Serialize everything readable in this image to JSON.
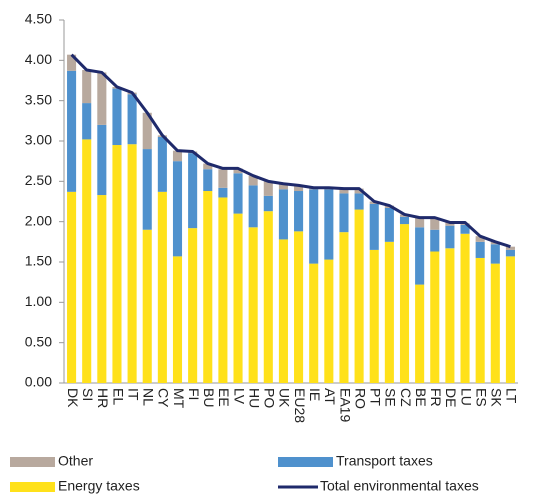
{
  "chart_data": {
    "type": "bar",
    "stacked": true,
    "categories": [
      "DK",
      "SI",
      "HR",
      "EL",
      "IT",
      "NL",
      "CY",
      "MT",
      "FI",
      "BU",
      "EE",
      "LV",
      "HU",
      "PO",
      "UK",
      "EU28",
      "IE",
      "AT",
      "EA19",
      "RO",
      "PT",
      "SE",
      "CZ",
      "BE",
      "FR",
      "DE",
      "LU",
      "ES",
      "SK",
      "LT"
    ],
    "series": [
      {
        "name": "Energy taxes",
        "type": "bar",
        "color": "#ffe11a",
        "values": [
          2.37,
          3.02,
          2.33,
          2.95,
          2.96,
          1.9,
          2.37,
          1.57,
          1.92,
          2.38,
          2.3,
          2.1,
          1.93,
          2.13,
          1.78,
          1.88,
          1.48,
          1.53,
          1.87,
          2.15,
          1.65,
          1.75,
          1.97,
          1.22,
          1.63,
          1.67,
          1.85,
          1.55,
          1.48,
          1.57
        ]
      },
      {
        "name": "Transport taxes",
        "type": "bar",
        "color": "#4f91cd",
        "values": [
          1.5,
          0.45,
          0.87,
          0.7,
          0.62,
          1.0,
          0.68,
          1.18,
          0.93,
          0.27,
          0.12,
          0.5,
          0.52,
          0.19,
          0.62,
          0.5,
          0.92,
          0.87,
          0.48,
          0.2,
          0.57,
          0.42,
          0.09,
          0.71,
          0.27,
          0.28,
          0.11,
          0.2,
          0.24,
          0.08
        ]
      },
      {
        "name": "Other",
        "type": "bar",
        "color": "#b8a99e",
        "values": [
          0.2,
          0.41,
          0.65,
          0.02,
          0.02,
          0.45,
          0.02,
          0.13,
          0.02,
          0.07,
          0.23,
          0.06,
          0.12,
          0.18,
          0.07,
          0.07,
          0.02,
          0.02,
          0.06,
          0.06,
          0.03,
          0.03,
          0.03,
          0.12,
          0.15,
          0.04,
          0.02,
          0.07,
          0.03,
          0.04
        ]
      },
      {
        "name": "Total environmental taxes",
        "type": "line",
        "color": "#1f2a6b",
        "values": [
          4.07,
          3.88,
          3.85,
          3.67,
          3.6,
          3.35,
          3.07,
          2.88,
          2.87,
          2.72,
          2.66,
          2.66,
          2.57,
          2.5,
          2.47,
          2.45,
          2.42,
          2.42,
          2.41,
          2.41,
          2.25,
          2.2,
          2.09,
          2.05,
          2.05,
          1.99,
          1.99,
          1.82,
          1.75,
          1.69
        ]
      }
    ],
    "ylim": [
      0,
      4.5
    ],
    "yticks": [
      {
        "value": 0,
        "label": "0.00"
      },
      {
        "value": 0.5,
        "label": "0.50"
      },
      {
        "value": 1,
        "label": "1.00"
      },
      {
        "value": 1.5,
        "label": "1.50"
      },
      {
        "value": 2,
        "label": "2.00"
      },
      {
        "value": 2.5,
        "label": "2.50"
      },
      {
        "value": 3,
        "label": "3.00"
      },
      {
        "value": 3.5,
        "label": "3.50"
      },
      {
        "value": 4,
        "label": "4.00"
      },
      {
        "value": 4.5,
        "label": "4.50"
      }
    ],
    "grid": false
  }
}
